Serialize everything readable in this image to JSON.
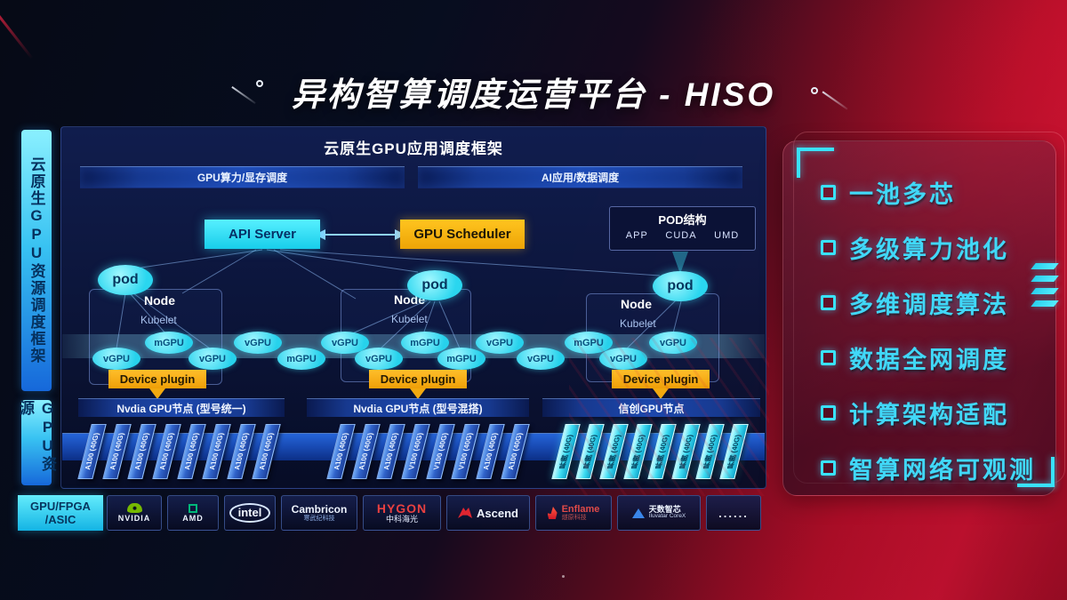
{
  "title": "异构智算调度运营平台 - HISO",
  "sidebar": {
    "framework_label": "云原生GPU资源调度框架",
    "resource_label": "GPU资源",
    "hardware_line1": "GPU/FPGA",
    "hardware_line2": "/ASIC"
  },
  "main": {
    "header": "云原生GPU应用调度框架",
    "left_bar": "GPU算力/显存调度",
    "right_bar": "AI应用/数据调度",
    "api_server": "API Server",
    "gpu_scheduler": "GPU Scheduler",
    "pod_box": {
      "title": "POD结构",
      "items": [
        "APP",
        "CUDA",
        "UMD"
      ]
    },
    "pod_label": "pod",
    "nodes": [
      {
        "label": "Node",
        "sub": "Kubelet"
      },
      {
        "label": "Node",
        "sub": "Kubelet"
      },
      {
        "label": "Node",
        "sub": "Kubelet"
      }
    ],
    "device_plugin": "Device plugin",
    "gpu_units": [
      "vGPU",
      "mGPU",
      "vGPU",
      "vGPU",
      "mGPU",
      "vGPU",
      "vGPU",
      "mGPU",
      "mGPU",
      "vGPU",
      "vGPU",
      "mGPU",
      "vGPU",
      "vGPU"
    ],
    "groups": [
      {
        "title": "Nvdia GPU节点 (型号统一)",
        "style": "blue",
        "cards": [
          "A100 (40G)",
          "A100 (40G)",
          "A100 (40G)",
          "A100 (40G)",
          "A100 (40G)",
          "A100 (40G)",
          "A100 (40G)",
          "A100 (40G)"
        ]
      },
      {
        "title": "Nvdia GPU节点 (型号混搭)",
        "style": "blue",
        "cards": [
          "A100 (40G)",
          "A100 (40G)",
          "A100 (40G)",
          "V100 (40G)",
          "V100 (40G)",
          "V100 (40G)",
          "A100 (40G)",
          "A100 (40G)"
        ]
      },
      {
        "title": "信创GPU节点",
        "style": "cyan",
        "cards": [
          "昇腾 (40G)",
          "昇腾 (40G)",
          "昇腾 (40G)",
          "昇腾 (40G)",
          "昇腾 (40G)",
          "昇腾 (40G)",
          "昇腾 (40G)",
          "昇腾 (40G)"
        ]
      }
    ]
  },
  "vendors": [
    {
      "icon": "nvidia",
      "name": "NVIDIA",
      "sub": "",
      "color": "#eef4ff"
    },
    {
      "icon": "amd",
      "name": "AMD",
      "sub": "",
      "color": "#eef4ff"
    },
    {
      "icon": "intel-oval",
      "name": "intel",
      "sub": "",
      "color": "#f2f7ff"
    },
    {
      "icon": "",
      "name": "Cambricon",
      "sub": "寒武纪科技",
      "color": "#eef4ff"
    },
    {
      "icon": "",
      "name": "HYGON",
      "sub": "中科海光",
      "color": "#e84040"
    },
    {
      "icon": "ascend",
      "name": "Ascend",
      "sub": "",
      "color": "#eef4ff"
    },
    {
      "icon": "enflame",
      "name": "Enflame",
      "sub": "燧原科技",
      "color": "#e04a48"
    },
    {
      "icon": "iluvatar",
      "name": "天数智芯",
      "sub": "Iluvatar CoreX",
      "color": "#eef4ff"
    },
    {
      "icon": "",
      "name": "......",
      "sub": "",
      "color": "#e8eefc"
    }
  ],
  "features": [
    "一池多芯",
    "多级算力池化",
    "多维调度算法",
    "数据全网调度",
    "计算架构适配",
    "智算网络可观测"
  ],
  "colors": {
    "accent_cyan": "#39e2fa",
    "accent_gold": "#f2a90f",
    "panel_navy": "#0c1a4a",
    "brand_red": "#c41332",
    "nvidia_green": "#76b900"
  }
}
